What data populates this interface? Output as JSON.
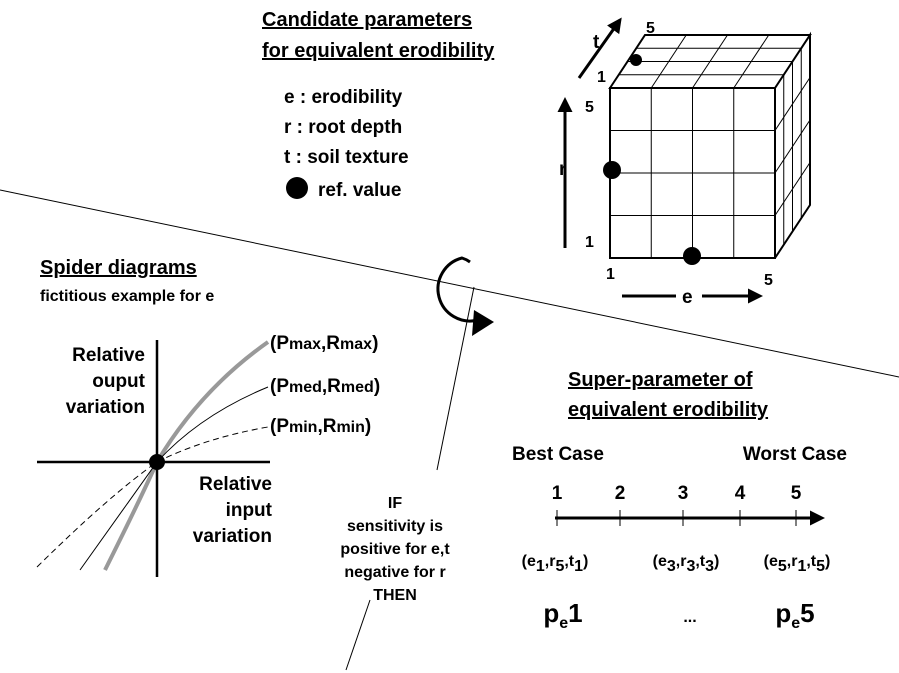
{
  "candidate": {
    "title": [
      "Candidate parameters",
      "for equivalent erodibility"
    ],
    "legend": [
      "e : erodibility",
      "r : root depth",
      "t : soil texture",
      "ref. value"
    ],
    "cube": {
      "t_axis": "t",
      "t_max": "5",
      "t_min": "1",
      "r_axis": "r",
      "r_max": "5",
      "r_min": "1",
      "e_axis": "e",
      "e_min": "1",
      "e_max": "5"
    }
  },
  "spider": {
    "title": "Spider diagrams",
    "subtitle": "fictitious example for e",
    "y_label": [
      "Relative",
      "ouput",
      "variation"
    ],
    "x_label": [
      "Relative",
      "input",
      "variation"
    ],
    "curves": [
      [
        "(P",
        "max",
        ",R",
        "max",
        ")"
      ],
      [
        "(P",
        "med",
        ",R",
        "med",
        ")"
      ],
      [
        "(P",
        "min",
        ",R",
        "min",
        ")"
      ]
    ]
  },
  "rule": [
    "IF",
    "sensitivity is",
    "positive for e,t",
    "negative for r",
    "THEN"
  ],
  "super": {
    "title": [
      "Super-parameter of",
      "equivalent erodibility"
    ],
    "best": "Best Case",
    "worst": "Worst Case",
    "ranks": [
      "1",
      "2",
      "3",
      "4",
      "5"
    ],
    "tuples": [
      [
        "(e",
        "1",
        ",r",
        "5",
        ",t",
        "1",
        ")"
      ],
      [
        "(e",
        "3",
        ",r",
        "3",
        ",t",
        "3",
        ")"
      ],
      [
        "(e",
        "5",
        ",r",
        "1",
        ",t",
        "5",
        ")"
      ]
    ],
    "params": [
      [
        "p",
        "e",
        "1"
      ],
      [
        "..."
      ],
      [
        "p",
        "e",
        "5"
      ]
    ]
  }
}
